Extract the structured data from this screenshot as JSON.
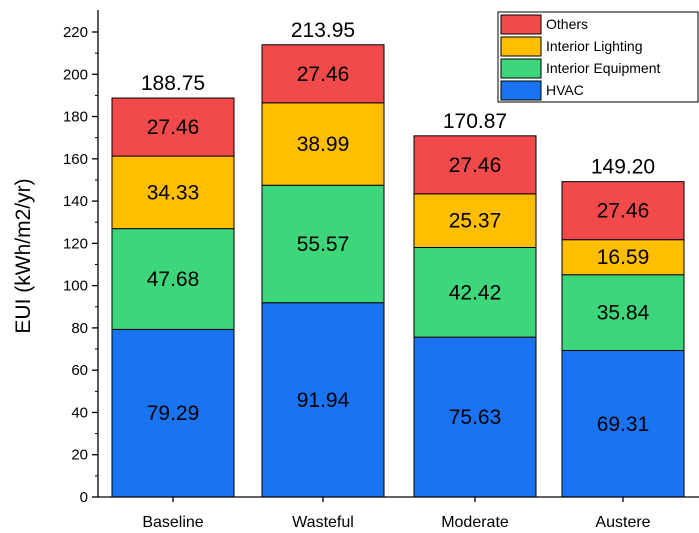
{
  "chart_data": {
    "type": "bar",
    "stacked": true,
    "categories": [
      "Baseline",
      "Wasteful",
      "Moderate",
      "Austere"
    ],
    "series": [
      {
        "name": "HVAC",
        "color": "#1a73f0",
        "values": [
          79.29,
          91.94,
          75.63,
          69.31
        ]
      },
      {
        "name": "Interior Equipment",
        "color": "#3ed67a",
        "values": [
          47.68,
          55.57,
          42.42,
          35.84
        ]
      },
      {
        "name": "Interior Lighting",
        "color": "#ffbe00",
        "values": [
          34.33,
          38.99,
          25.37,
          16.59
        ]
      },
      {
        "name": "Others",
        "color": "#f24a4a",
        "values": [
          27.46,
          27.46,
          27.46,
          27.46
        ]
      }
    ],
    "totals": [
      "188.75",
      "213.95",
      "170.87",
      "149.20"
    ],
    "segment_labels": [
      [
        "79.29",
        "91.94",
        "75.63",
        "69.31"
      ],
      [
        "47.68",
        "55.57",
        "42.42",
        "35.84"
      ],
      [
        "34.33",
        "38.99",
        "25.37",
        "16.59"
      ],
      [
        "27.46",
        "27.46",
        "27.46",
        "27.46"
      ]
    ],
    "title": "",
    "xlabel": "",
    "ylabel": "EUI (kWh/m2/yr)",
    "ylim": [
      0,
      230
    ],
    "yticks": [
      0,
      20,
      40,
      60,
      80,
      100,
      120,
      140,
      160,
      180,
      200,
      220
    ],
    "legend": {
      "placement": "top-right",
      "order": [
        "Others",
        "Interior Lighting",
        "Interior Equipment",
        "HVAC"
      ]
    },
    "grid": false
  }
}
